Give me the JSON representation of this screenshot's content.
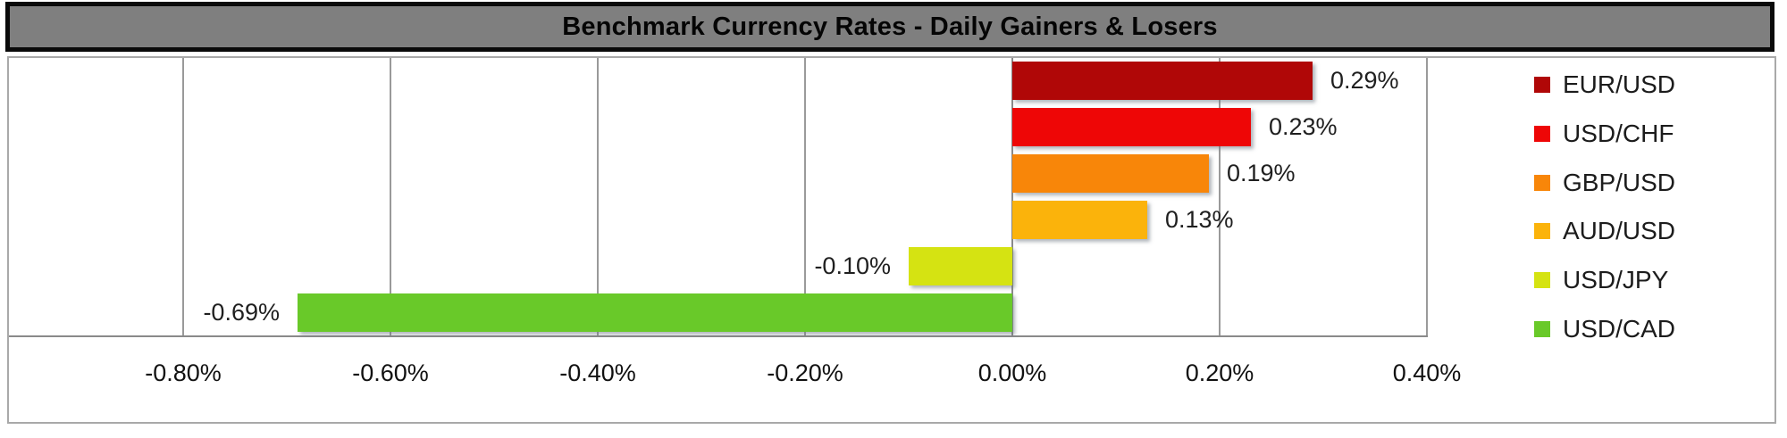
{
  "chart_data": {
    "type": "bar",
    "orientation": "horizontal",
    "title": "Benchmark Currency Rates - Daily Gainers & Losers",
    "categories": [
      "EUR/USD",
      "USD/CHF",
      "GBP/USD",
      "AUD/USD",
      "USD/JPY",
      "USD/CAD"
    ],
    "values": [
      0.29,
      0.23,
      0.19,
      0.13,
      -0.1,
      -0.69
    ],
    "value_labels": [
      "0.29%",
      "0.23%",
      "0.19%",
      "0.13%",
      "-0.10%",
      "-0.69%"
    ],
    "bar_colors": [
      "#b00707",
      "#ee0606",
      "#f88609",
      "#fbb30b",
      "#d5e312",
      "#69c929"
    ],
    "x_ticks": [
      -0.8,
      -0.6,
      -0.4,
      -0.2,
      0.0,
      0.2,
      0.4
    ],
    "x_tick_labels": [
      "-0.80%",
      "-0.60%",
      "-0.40%",
      "-0.20%",
      "0.00%",
      "0.20%",
      "0.40%"
    ],
    "xlim": [
      -0.97,
      0.4
    ],
    "grid": true,
    "legend_position": "right",
    "legend": [
      "EUR/USD",
      "USD/CHF",
      "GBP/USD",
      "AUD/USD",
      "USD/JPY",
      "USD/CAD"
    ]
  },
  "colors": {
    "title_bar_bg": "#7f7f7f",
    "title_border": "#0a0a0a",
    "chart_border": "#a9a9a9",
    "gridline": "#9a9a9a",
    "zero_line": "#8a8a8a",
    "axis_line": "#8a8a8a",
    "data_label_text": "#1f1f1f",
    "tick_label_text": "#111111"
  }
}
